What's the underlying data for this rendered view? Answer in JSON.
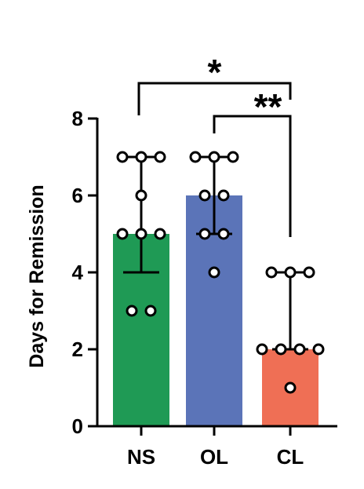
{
  "chart_data": {
    "type": "bar",
    "categories": [
      "NS",
      "OL",
      "CL"
    ],
    "values": [
      5,
      6,
      2
    ],
    "colors": [
      "#1f9a55",
      "#5b74b8",
      "#ef6f55"
    ],
    "points": [
      [
        7,
        7,
        7,
        6,
        5,
        5,
        5,
        3,
        3
      ],
      [
        7,
        7,
        7,
        6,
        6,
        5,
        5,
        4
      ],
      [
        4,
        4,
        4,
        2,
        2,
        2,
        2,
        1
      ]
    ],
    "error_bars": [
      {
        "low": 4,
        "high": 7
      },
      {
        "low": 5,
        "high": 7
      },
      {
        "low": 2,
        "high": 4
      }
    ],
    "ylabel": "Days for Remission",
    "xlabel": "",
    "ylim": [
      0,
      8
    ],
    "yticks": [
      0,
      2,
      4,
      6,
      8
    ],
    "significance": [
      {
        "from": "NS",
        "to": "CL",
        "label": "*"
      },
      {
        "from": "OL",
        "to": "CL",
        "label": "**"
      }
    ],
    "grid": false,
    "legend": "none"
  }
}
